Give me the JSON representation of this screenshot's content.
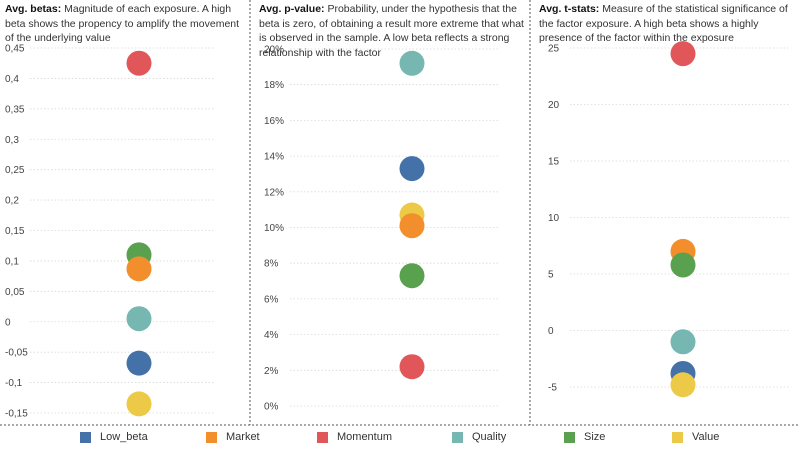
{
  "colors": {
    "Low_beta": "#4472a8",
    "Market": "#f28e2b",
    "Momentum": "#e15759",
    "Quality": "#76b7b2",
    "Size": "#59a14f",
    "Value": "#edc948"
  },
  "legend": [
    "Low_beta",
    "Market",
    "Momentum",
    "Quality",
    "Size",
    "Value"
  ],
  "chart_data": [
    {
      "type": "scatter",
      "title_bold": "Avg. betas:",
      "title_rest": " Magnitude of each exposure. A high beta shows the propency to amplify the movement of the underlying value",
      "ylim": [
        -0.16,
        0.47
      ],
      "yticks": [
        -0.15,
        -0.1,
        -0.05,
        0,
        0.05,
        0.1,
        0.15,
        0.2,
        0.25,
        0.3,
        0.35,
        0.4,
        0.45
      ],
      "ytick_labels": [
        "-0,15",
        "-0,1",
        "-0,05",
        "0",
        "0,05",
        "0,1",
        "0,15",
        "0,2",
        "0,25",
        "0,3",
        "0,35",
        "0,4",
        "0,45"
      ],
      "grid": true,
      "series": [
        {
          "name": "Momentum",
          "value": 0.425
        },
        {
          "name": "Size",
          "value": 0.11
        },
        {
          "name": "Market",
          "value": 0.087
        },
        {
          "name": "Quality",
          "value": 0.005
        },
        {
          "name": "Low_beta",
          "value": -0.068
        },
        {
          "name": "Value",
          "value": -0.135
        }
      ]
    },
    {
      "type": "scatter",
      "title_bold": "Avg. p-value:",
      "title_rest": " Probability, under the hypothesis that the beta is zero, of obtaining a result more extreme that what is observed in the sample. A low beta reflects a strong relationship with the factor",
      "ylim": [
        0,
        20.6
      ],
      "yticks": [
        0,
        2,
        4,
        6,
        8,
        10,
        12,
        14,
        16,
        18,
        20
      ],
      "ytick_labels": [
        "0%",
        "2%",
        "4%",
        "6%",
        "8%",
        "10%",
        "12%",
        "14%",
        "16%",
        "18%",
        "20%"
      ],
      "grid": true,
      "series": [
        {
          "name": "Quality",
          "value": 19.2
        },
        {
          "name": "Low_beta",
          "value": 13.3
        },
        {
          "name": "Value",
          "value": 10.7
        },
        {
          "name": "Market",
          "value": 10.1
        },
        {
          "name": "Size",
          "value": 7.3
        },
        {
          "name": "Momentum",
          "value": 2.2
        }
      ]
    },
    {
      "type": "scatter",
      "title_bold": "Avg. t-stats:",
      "title_rest": " Measure of the statistical significance of the factor exposure. A high beta shows a highly presence of the factor within the exposure",
      "ylim": [
        -6,
        26
      ],
      "yticks": [
        -5,
        0,
        5,
        10,
        15,
        20,
        25
      ],
      "ytick_labels": [
        "-5",
        "0",
        "5",
        "10",
        "15",
        "20",
        "25"
      ],
      "grid": true,
      "series": [
        {
          "name": "Momentum",
          "value": 24.5
        },
        {
          "name": "Market",
          "value": 7.0
        },
        {
          "name": "Size",
          "value": 5.8
        },
        {
          "name": "Quality",
          "value": -1.0
        },
        {
          "name": "Low_beta",
          "value": -3.8
        },
        {
          "name": "Value",
          "value": -4.8
        }
      ]
    }
  ]
}
